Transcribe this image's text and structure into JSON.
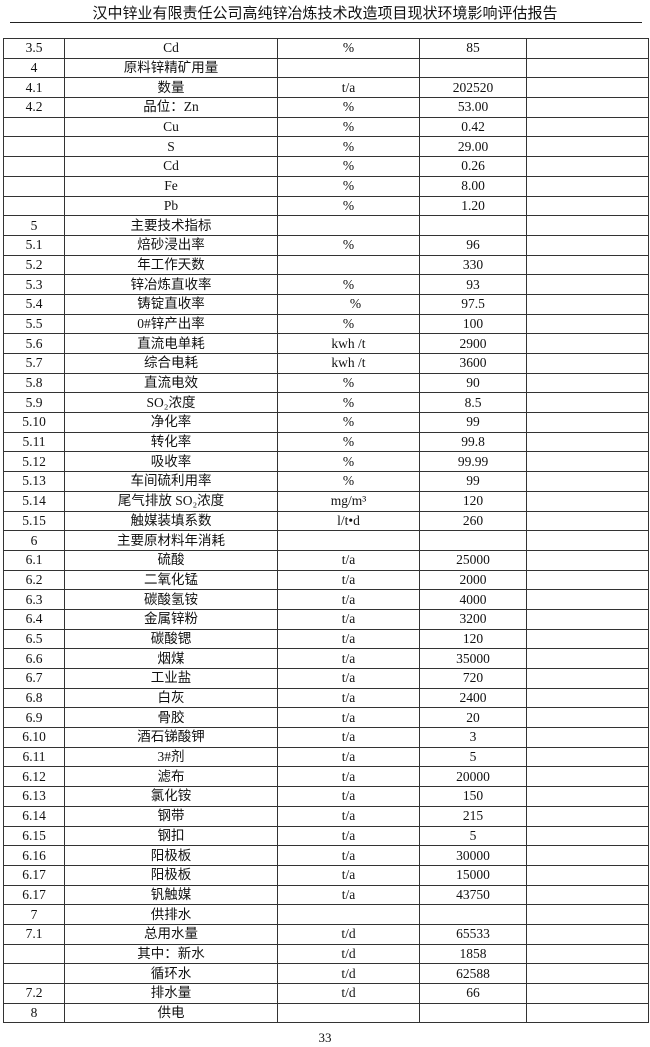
{
  "header": {
    "title": "汉中锌业有限责任公司高纯锌冶炼技术改造项目现状环境影响评估报告"
  },
  "table": {
    "rows": [
      [
        "3.5",
        "Cd",
        "%",
        "85",
        ""
      ],
      [
        "4",
        "原料锌精矿用量",
        "",
        "",
        ""
      ],
      [
        "4.1",
        "数量",
        "t/a",
        "202520",
        ""
      ],
      [
        "4.2",
        "品位：Zn",
        "%",
        "53.00",
        ""
      ],
      [
        "",
        "Cu",
        "%",
        "0.42",
        ""
      ],
      [
        "",
        "S",
        "%",
        "29.00",
        ""
      ],
      [
        "",
        "Cd",
        "%",
        "0.26",
        ""
      ],
      [
        "",
        "Fe",
        "%",
        "8.00",
        ""
      ],
      [
        "",
        "Pb",
        "%",
        "1.20",
        ""
      ],
      [
        "5",
        "主要技术指标",
        "",
        "",
        ""
      ],
      [
        "5.1",
        "焙砂浸出率",
        "%",
        "96",
        ""
      ],
      [
        "5.2",
        "年工作天数",
        "",
        "330",
        ""
      ],
      [
        "5.3",
        "锌冶炼直收率",
        "%",
        "93",
        ""
      ],
      [
        "5.4",
        "铸锭直收率",
        "%",
        "97.5",
        ""
      ],
      [
        "5.5",
        "0#锌产出率",
        "%",
        "100",
        ""
      ],
      [
        "5.6",
        "直流电单耗",
        "kwh /t",
        "2900",
        ""
      ],
      [
        "5.7",
        "综合电耗",
        "kwh /t",
        "3600",
        ""
      ],
      [
        "5.8",
        "直流电效",
        "%",
        "90",
        ""
      ],
      [
        "5.9",
        "SO₂浓度",
        "%",
        "8.5",
        ""
      ],
      [
        "5.10",
        "净化率",
        "%",
        "99",
        ""
      ],
      [
        "5.11",
        "转化率",
        "%",
        "99.8",
        ""
      ],
      [
        "5.12",
        "吸收率",
        "%",
        "99.99",
        ""
      ],
      [
        "5.13",
        "车间硫利用率",
        "%",
        "99",
        ""
      ],
      [
        "5.14",
        "尾气排放 SO₂浓度",
        "mg/m³",
        "120",
        ""
      ],
      [
        "5.15",
        "触媒装填系数",
        "l/t•d",
        "260",
        ""
      ],
      [
        "6",
        "主要原材料年消耗",
        "",
        "",
        ""
      ],
      [
        "6.1",
        "硫酸",
        "t/a",
        "25000",
        ""
      ],
      [
        "6.2",
        "二氧化锰",
        "t/a",
        "2000",
        ""
      ],
      [
        "6.3",
        "碳酸氢铵",
        "t/a",
        "4000",
        ""
      ],
      [
        "6.4",
        "金属锌粉",
        "t/a",
        "3200",
        ""
      ],
      [
        "6.5",
        "碳酸锶",
        "t/a",
        "120",
        ""
      ],
      [
        "6.6",
        "烟煤",
        "t/a",
        "35000",
        ""
      ],
      [
        "6.7",
        "工业盐",
        "t/a",
        "720",
        ""
      ],
      [
        "6.8",
        "白灰",
        "t/a",
        "2400",
        ""
      ],
      [
        "6.9",
        "骨胶",
        "t/a",
        "20",
        ""
      ],
      [
        "6.10",
        "酒石锑酸钾",
        "t/a",
        "3",
        ""
      ],
      [
        "6.11",
        "3#剂",
        "t/a",
        "5",
        ""
      ],
      [
        "6.12",
        "滤布",
        "t/a",
        "20000",
        ""
      ],
      [
        "6.13",
        "氯化铵",
        "t/a",
        "150",
        ""
      ],
      [
        "6.14",
        "钢带",
        "t/a",
        "215",
        ""
      ],
      [
        "6.15",
        "钢扣",
        "t/a",
        "5",
        ""
      ],
      [
        "6.16",
        "阳极板",
        "t/a",
        "30000",
        ""
      ],
      [
        "6.17",
        "阳极板",
        "t/a",
        "15000",
        ""
      ],
      [
        "6.17",
        "钒触媒",
        "t/a",
        "43750",
        ""
      ],
      [
        "7",
        "供排水",
        "",
        "",
        ""
      ],
      [
        "7.1",
        "总用水量",
        "t/d",
        "65533",
        ""
      ],
      [
        "",
        "其中：新水",
        "t/d",
        "1858",
        ""
      ],
      [
        "",
        "循环水",
        "t/d",
        "62588",
        ""
      ],
      [
        "7.2",
        "排水量",
        "t/d",
        "66",
        ""
      ],
      [
        "8",
        "供电",
        "",
        "",
        ""
      ]
    ]
  },
  "footer": {
    "page_number": "33"
  }
}
